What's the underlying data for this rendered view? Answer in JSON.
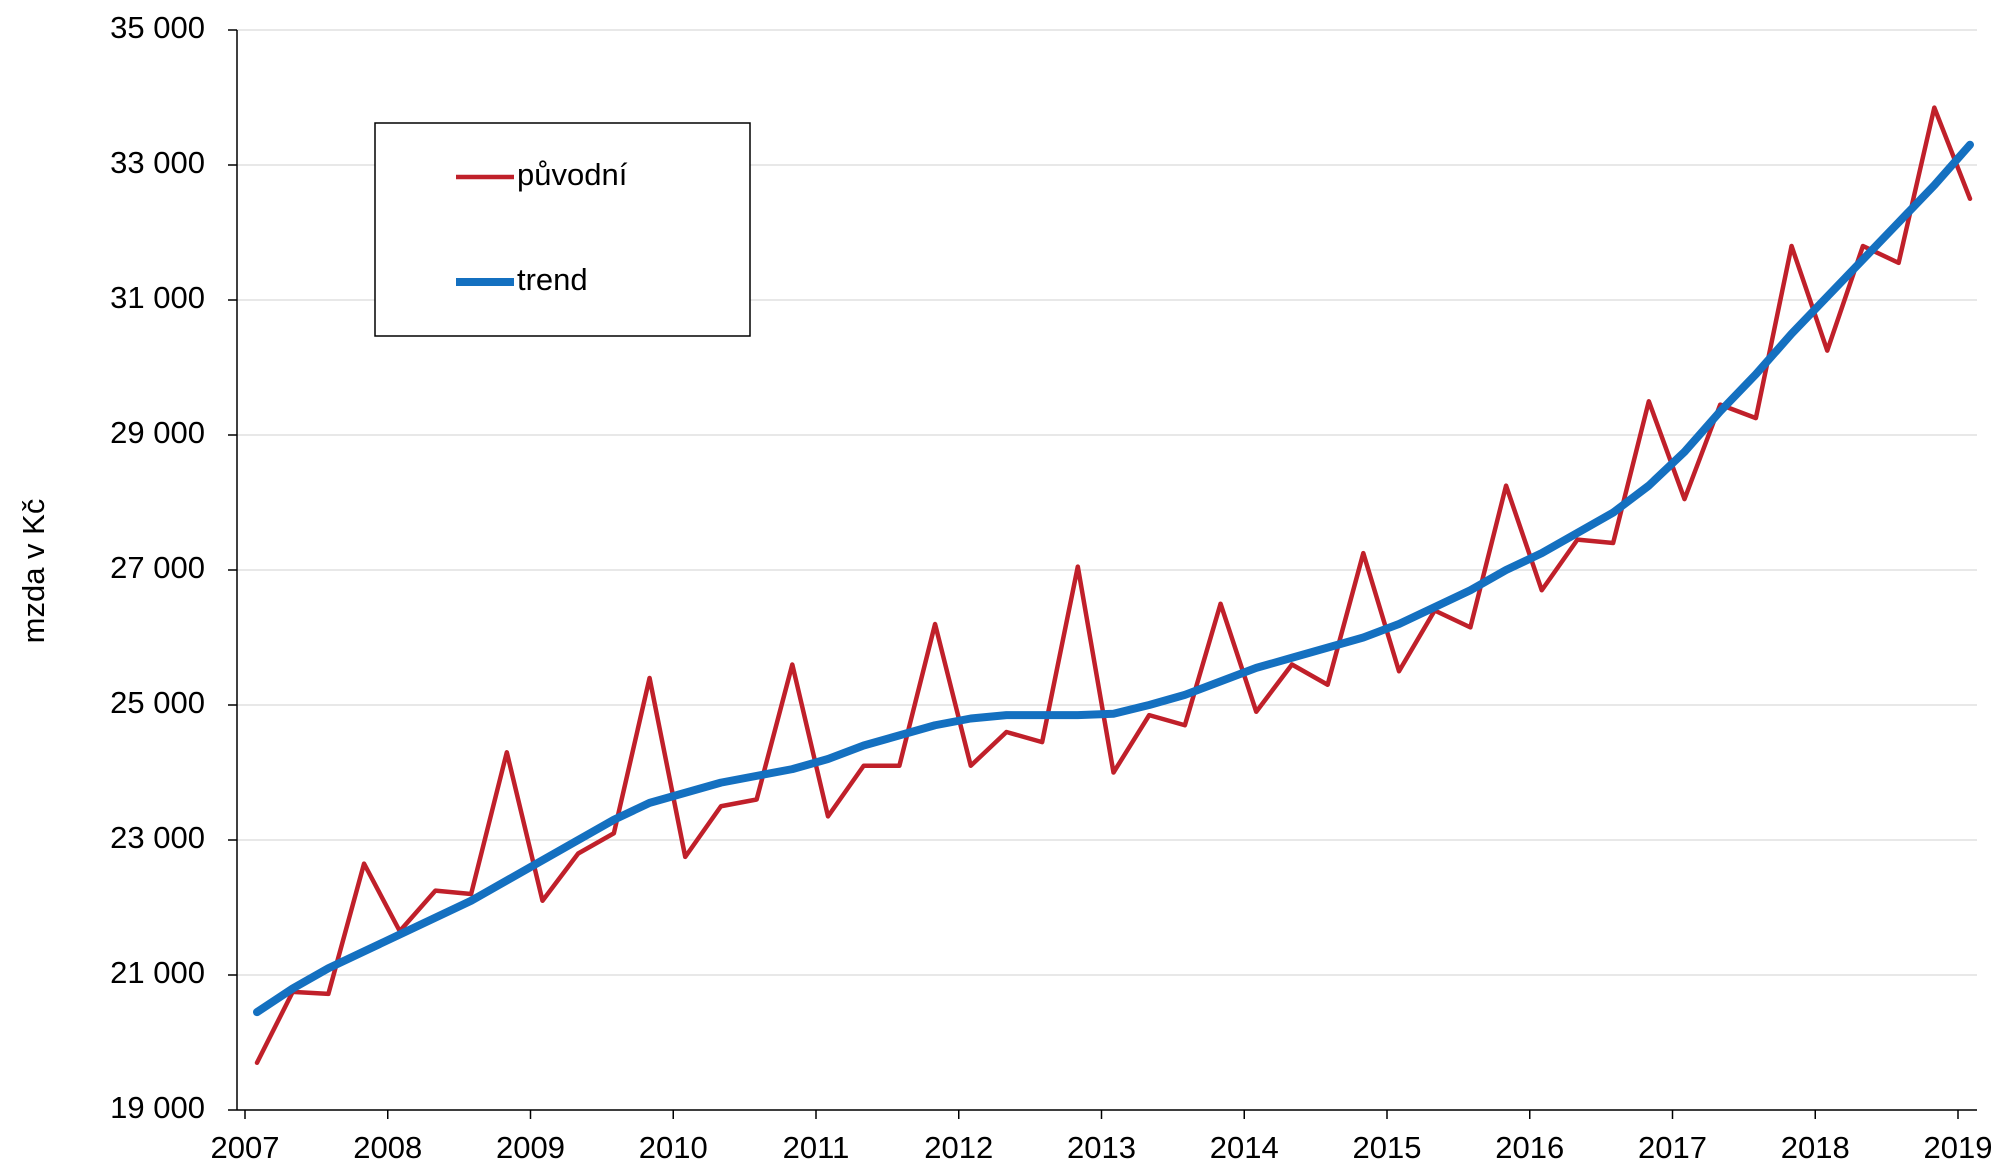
{
  "chart_data": {
    "type": "line",
    "y_label": "mzda v Kč",
    "categories": [
      "2007",
      null,
      null,
      null,
      "2008",
      null,
      null,
      null,
      "2009",
      null,
      null,
      null,
      "2010",
      null,
      null,
      null,
      "2011",
      null,
      null,
      null,
      "2012",
      null,
      null,
      null,
      "2013",
      null,
      null,
      null,
      "2014",
      null,
      null,
      null,
      "2015",
      null,
      null,
      null,
      "2016",
      null,
      null,
      null,
      "2017",
      null,
      null,
      null,
      "2018",
      null,
      null,
      null,
      "2019"
    ],
    "series": [
      {
        "name": "původní",
        "color": "#c0202a",
        "values": [
          19700,
          20750,
          20720,
          22650,
          21650,
          22250,
          22200,
          24300,
          22100,
          22800,
          23100,
          25400,
          22750,
          23500,
          23600,
          25600,
          23350,
          24100,
          24100,
          26200,
          24100,
          24600,
          24450,
          27050,
          24000,
          24850,
          24700,
          26500,
          24900,
          25600,
          25300,
          27250,
          25500,
          26400,
          26150,
          28250,
          26700,
          27450,
          27400,
          29500,
          28050,
          29450,
          29250,
          31800,
          30250,
          31800,
          31550,
          33850,
          32500
        ]
      },
      {
        "name": "trend",
        "color": "#1470c0",
        "values": [
          20450,
          20800,
          21100,
          21350,
          21600,
          21850,
          22100,
          22400,
          22700,
          23000,
          23300,
          23550,
          23700,
          23850,
          23950,
          24050,
          24200,
          24400,
          24550,
          24700,
          24800,
          24850,
          24850,
          24850,
          24870,
          25000,
          25150,
          25350,
          25550,
          25700,
          25850,
          26000,
          26200,
          26450,
          26700,
          27000,
          27250,
          27550,
          27850,
          28250,
          28750,
          29350,
          29900,
          30500,
          31050,
          31600,
          32150,
          32700,
          33300
        ]
      }
    ],
    "ylim": [
      19000,
      35000
    ],
    "yticks": [
      {
        "value": 19000,
        "label": "19 000"
      },
      {
        "value": 21000,
        "label": "21 000"
      },
      {
        "value": 23000,
        "label": "23 000"
      },
      {
        "value": 25000,
        "label": "25 000"
      },
      {
        "value": 27000,
        "label": "27 000"
      },
      {
        "value": 29000,
        "label": "29 000"
      },
      {
        "value": 31000,
        "label": "31 000"
      },
      {
        "value": 33000,
        "label": "33 000"
      },
      {
        "value": 35000,
        "label": "35 000"
      }
    ],
    "grid": true,
    "legend": "upper left"
  }
}
